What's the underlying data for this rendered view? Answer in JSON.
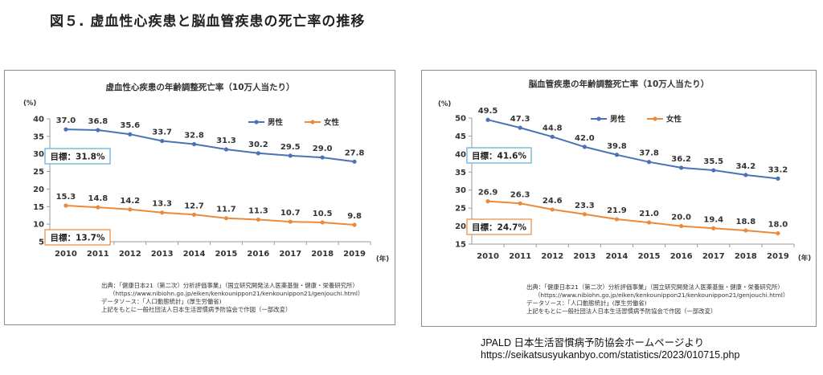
{
  "page": {
    "title": "図５. 虚血性心疾患と脳血管疾患の死亡率の推移",
    "credit_line1": "JPALD 日本生活習慣病予防協会ホームページより",
    "credit_line2": "https://seikatsusyukanbyo.com/statistics/2023/010715.php"
  },
  "source_lines": [
    "出典：「健康日本21（第二次）分析評価事業」（国立研究開発法人医薬基盤・健康・栄養研究所）",
    "（https://www.nibiohn.go.jp/eiken/kenkounippon21/kenkounippon21/genjouchi.html）",
    "データソース：「人口動態統計」(厚生労働省)",
    "上記をもとに一般社団法人日本生活習慣病予防協会で作図（一部改変）"
  ],
  "chart_data": [
    {
      "type": "line",
      "title": "虚血性心疾患の年齢調整死亡率（10万人当たり）",
      "y_unit": "(%)",
      "x_unit": "(年)",
      "x": [
        2010,
        2011,
        2012,
        2013,
        2014,
        2015,
        2016,
        2017,
        2018,
        2019
      ],
      "ylim": [
        5,
        40
      ],
      "yticks": [
        5,
        10,
        15,
        20,
        25,
        30,
        35,
        40
      ],
      "legend_placement": "top-right",
      "grid": false,
      "series": [
        {
          "name": "男性",
          "color": "#4a72b5",
          "values": [
            37.0,
            36.8,
            35.6,
            33.7,
            32.8,
            31.3,
            30.2,
            29.5,
            29.0,
            27.8
          ]
        },
        {
          "name": "女性",
          "color": "#ec8a3a",
          "values": [
            15.3,
            14.8,
            14.2,
            13.3,
            12.7,
            11.7,
            11.3,
            10.7,
            10.5,
            9.8
          ]
        }
      ],
      "targets": [
        {
          "label": "目標：31.8%",
          "color": "#5aa9d8"
        },
        {
          "label": "目標：13.7%",
          "color": "#ec8a3a"
        }
      ]
    },
    {
      "type": "line",
      "title": "脳血管疾患の年齢調整死亡率（10万人当たり）",
      "y_unit": "(%)",
      "x_unit": "(年)",
      "x": [
        2010,
        2011,
        2012,
        2013,
        2014,
        2015,
        2016,
        2017,
        2018,
        2019
      ],
      "ylim": [
        15,
        50
      ],
      "yticks": [
        15,
        20,
        25,
        30,
        35,
        40,
        45,
        50
      ],
      "legend_placement": "top-center",
      "grid": false,
      "series": [
        {
          "name": "男性",
          "color": "#4a72b5",
          "values": [
            49.5,
            47.3,
            44.8,
            42.0,
            39.8,
            37.8,
            36.2,
            35.5,
            34.2,
            33.2
          ]
        },
        {
          "name": "女性",
          "color": "#ec8a3a",
          "values": [
            26.9,
            26.3,
            24.6,
            23.3,
            21.9,
            21.0,
            20.0,
            19.4,
            18.8,
            18.0
          ]
        }
      ],
      "targets": [
        {
          "label": "目標：41.6%",
          "color": "#5aa9d8"
        },
        {
          "label": "目標：24.7%",
          "color": "#ec8a3a"
        }
      ]
    }
  ]
}
